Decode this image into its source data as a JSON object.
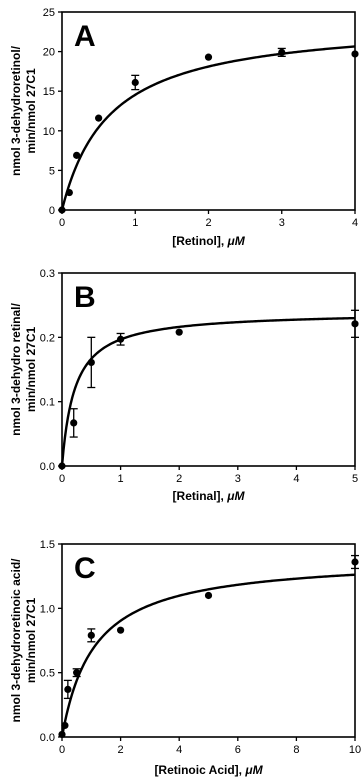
{
  "chart_data": [
    {
      "type": "scatter",
      "panel_label": "A",
      "xlabel_prefix": "[Retinol], ",
      "xlabel_unit": "μM",
      "ylabel_line1": "nmol 3-dehydroretinol/",
      "ylabel_line2": "min/nmol 27C1",
      "xlim": [
        0,
        4
      ],
      "ylim": [
        0,
        25
      ],
      "xticks": [
        0,
        1,
        2,
        3,
        4
      ],
      "yticks": [
        0,
        5,
        10,
        15,
        20,
        25
      ],
      "ytick_decimals": 0,
      "x": [
        0,
        0.1,
        0.2,
        0.5,
        1,
        2,
        3,
        4
      ],
      "y": [
        0,
        2.2,
        6.9,
        11.6,
        16.1,
        19.3,
        19.9,
        19.7
      ],
      "yerr": [
        0,
        0,
        0,
        0,
        0.9,
        0,
        0.5,
        0
      ],
      "fit": {
        "model": "michaelis-menten",
        "vmax": 24,
        "km": 0.65
      }
    },
    {
      "type": "scatter",
      "panel_label": "B",
      "xlabel_prefix": "[Retinal], ",
      "xlabel_unit": "μM",
      "ylabel_line1": "nmol 3-dehydro retinal/",
      "ylabel_line2": "min/nmol 27C1",
      "xlim": [
        0,
        5
      ],
      "ylim": [
        0,
        0.3
      ],
      "xticks": [
        0,
        1,
        2,
        3,
        4,
        5
      ],
      "yticks": [
        0,
        0.1,
        0.2,
        0.3
      ],
      "ytick_decimals": 1,
      "x": [
        0,
        0.2,
        0.5,
        1,
        2,
        5
      ],
      "y": [
        0,
        0.067,
        0.161,
        0.197,
        0.208,
        0.221
      ],
      "yerr": [
        0,
        0.022,
        0.039,
        0.009,
        0,
        0.021
      ],
      "fit": {
        "model": "michaelis-menten",
        "vmax": 0.24,
        "km": 0.22
      }
    },
    {
      "type": "scatter",
      "panel_label": "C",
      "xlabel_prefix": "[Retinoic Acid], ",
      "xlabel_unit": "μM",
      "ylabel_line1": "nmol 3-dehydroretinoic acid/",
      "ylabel_line2": "min/nmol 27C1",
      "xlim": [
        0,
        10
      ],
      "ylim": [
        0,
        1.5
      ],
      "xticks": [
        0,
        2,
        4,
        6,
        8,
        10
      ],
      "yticks": [
        0,
        0.5,
        1.0,
        1.5
      ],
      "ytick_decimals": 1,
      "x": [
        0,
        0.1,
        0.2,
        0.5,
        1,
        2,
        5,
        10
      ],
      "y": [
        0.02,
        0.09,
        0.37,
        0.5,
        0.79,
        0.83,
        1.1,
        1.36
      ],
      "yerr": [
        0,
        0,
        0.07,
        0.03,
        0.05,
        0,
        0,
        0.05
      ],
      "fit": {
        "model": "michaelis-menten",
        "vmax": 1.4,
        "km": 1.1
      }
    }
  ]
}
